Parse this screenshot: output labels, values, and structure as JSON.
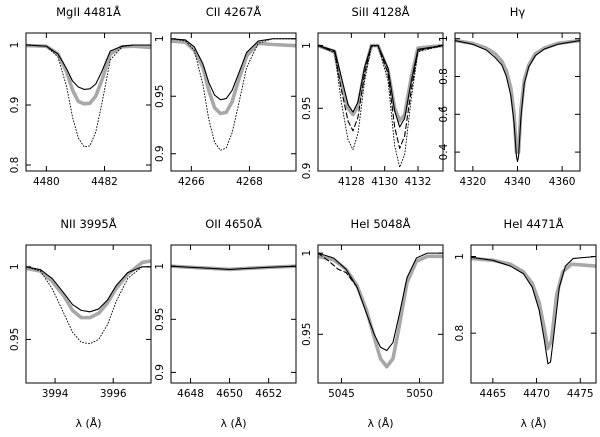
{
  "chart_data": [
    {
      "type": "line",
      "title": "MgII 4481Å",
      "xlabel": "",
      "xlim": [
        4479.3,
        4483.6
      ],
      "ylim": [
        0.79,
        1.02
      ],
      "xticks": [
        4480,
        4482
      ],
      "yticks": [
        0.8,
        0.9,
        1
      ],
      "series": [
        {
          "style": "observed",
          "x": [
            4479.3,
            4480.0,
            4480.4,
            4480.7,
            4480.9,
            4481.1,
            4481.3,
            4481.5,
            4481.7,
            4481.9,
            4482.2,
            4482.6,
            4483.0,
            4483.6
          ],
          "y": [
            0.999,
            0.998,
            0.985,
            0.955,
            0.925,
            0.906,
            0.902,
            0.903,
            0.915,
            0.94,
            0.985,
            0.997,
            0.998,
            0.996
          ]
        },
        {
          "style": "model-solid",
          "x": [
            4479.3,
            4480.0,
            4480.4,
            4480.7,
            4480.9,
            4481.1,
            4481.3,
            4481.5,
            4481.7,
            4481.9,
            4482.2,
            4482.6,
            4483.0,
            4483.6
          ],
          "y": [
            1.0,
            0.998,
            0.985,
            0.96,
            0.94,
            0.93,
            0.926,
            0.927,
            0.935,
            0.955,
            0.99,
            0.998,
            1.0,
            1.0
          ]
        },
        {
          "style": "model-dotted",
          "x": [
            4479.3,
            4480.0,
            4480.4,
            4480.7,
            4480.9,
            4481.1,
            4481.3,
            4481.5,
            4481.7,
            4481.9,
            4482.2,
            4482.6,
            4483.0,
            4483.6
          ],
          "y": [
            1.0,
            0.998,
            0.98,
            0.93,
            0.88,
            0.845,
            0.83,
            0.832,
            0.855,
            0.9,
            0.975,
            0.997,
            1.0,
            1.0
          ]
        }
      ]
    },
    {
      "type": "line",
      "title": "CII 4267Å",
      "xlabel": "",
      "xlim": [
        4265.3,
        4269.6
      ],
      "ylim": [
        0.885,
        1.005
      ],
      "xticks": [
        4266,
        4268
      ],
      "yticks": [
        0.9,
        0.95,
        1
      ],
      "series": [
        {
          "style": "observed",
          "x": [
            4265.3,
            4265.8,
            4266.1,
            4266.4,
            4266.6,
            4266.8,
            4267.0,
            4267.2,
            4267.4,
            4267.6,
            4267.9,
            4268.3,
            4268.8,
            4269.6
          ],
          "y": [
            0.998,
            0.997,
            0.99,
            0.975,
            0.955,
            0.94,
            0.935,
            0.936,
            0.945,
            0.962,
            0.985,
            0.996,
            0.995,
            0.994
          ]
        },
        {
          "style": "model-solid",
          "x": [
            4265.3,
            4265.8,
            4266.1,
            4266.4,
            4266.6,
            4266.8,
            4267.0,
            4267.2,
            4267.4,
            4267.6,
            4267.9,
            4268.3,
            4268.8,
            4269.6
          ],
          "y": [
            1.0,
            0.999,
            0.993,
            0.978,
            0.962,
            0.951,
            0.947,
            0.948,
            0.955,
            0.968,
            0.988,
            0.998,
            1.0,
            1.0
          ]
        },
        {
          "style": "model-dotted",
          "x": [
            4265.3,
            4265.8,
            4266.1,
            4266.4,
            4266.6,
            4266.8,
            4267.0,
            4267.2,
            4267.4,
            4267.6,
            4267.9,
            4268.3,
            4268.8,
            4269.6
          ],
          "y": [
            1.0,
            0.998,
            0.99,
            0.96,
            0.93,
            0.91,
            0.903,
            0.905,
            0.918,
            0.94,
            0.975,
            0.996,
            1.0,
            1.0
          ]
        }
      ]
    },
    {
      "type": "line",
      "title": "SiII 4128Å",
      "xlabel": "",
      "xlim": [
        4126.0,
        4133.5
      ],
      "ylim": [
        0.9,
        1.01
      ],
      "xticks": [
        4128,
        4130,
        4132
      ],
      "yticks": [
        0.9,
        0.95,
        1
      ],
      "series": [
        {
          "style": "observed",
          "x": [
            4126.0,
            4127.0,
            4127.4,
            4127.8,
            4128.1,
            4128.4,
            4128.8,
            4129.2,
            4129.6,
            4130.2,
            4130.6,
            4130.9,
            4131.2,
            4131.6,
            4132.0,
            4133.5
          ],
          "y": [
            1.0,
            0.995,
            0.97,
            0.95,
            0.945,
            0.952,
            0.98,
            1.0,
            1.0,
            0.98,
            0.95,
            0.94,
            0.945,
            0.975,
            0.998,
            1.0
          ]
        },
        {
          "style": "model-solid",
          "x": [
            4126.0,
            4127.0,
            4127.4,
            4127.8,
            4128.1,
            4128.4,
            4128.8,
            4129.2,
            4129.6,
            4130.2,
            4130.6,
            4130.9,
            4131.2,
            4131.6,
            4132.0,
            4133.5
          ],
          "y": [
            1.0,
            0.996,
            0.975,
            0.953,
            0.947,
            0.955,
            0.983,
            1.0,
            1.0,
            0.982,
            0.948,
            0.935,
            0.942,
            0.972,
            0.997,
            1.0
          ]
        },
        {
          "style": "model-dashed",
          "x": [
            4126.0,
            4127.0,
            4127.4,
            4127.8,
            4128.1,
            4128.4,
            4128.8,
            4129.2,
            4129.6,
            4130.2,
            4130.6,
            4130.9,
            4131.2,
            4131.6,
            4132.0,
            4133.5
          ],
          "y": [
            1.0,
            0.995,
            0.965,
            0.94,
            0.932,
            0.943,
            0.978,
            1.0,
            1.0,
            0.978,
            0.935,
            0.918,
            0.928,
            0.965,
            0.996,
            1.0
          ]
        },
        {
          "style": "model-dotted",
          "x": [
            4126.0,
            4127.0,
            4127.4,
            4127.8,
            4128.1,
            4128.4,
            4128.8,
            4129.2,
            4129.6,
            4130.2,
            4130.6,
            4130.9,
            4131.2,
            4131.6,
            4132.0,
            4133.5
          ],
          "y": [
            1.0,
            0.994,
            0.955,
            0.925,
            0.917,
            0.93,
            0.972,
            0.999,
            1.0,
            0.972,
            0.92,
            0.903,
            0.913,
            0.958,
            0.995,
            1.0
          ]
        }
      ]
    },
    {
      "type": "line",
      "title": "Hγ",
      "xlabel": "",
      "xlim": [
        4312,
        4368
      ],
      "ylim": [
        0.3,
        1.03
      ],
      "xticks": [
        4320,
        4340,
        4360
      ],
      "yticks": [
        0.4,
        0.6,
        0.8,
        1
      ],
      "series": [
        {
          "style": "observed",
          "x": [
            4312,
            4320,
            4326,
            4330,
            4333,
            4335,
            4337,
            4338.5,
            4339.5,
            4340.5,
            4341.5,
            4343,
            4345,
            4348,
            4352,
            4358,
            4368
          ],
          "y": [
            0.99,
            0.975,
            0.95,
            0.92,
            0.88,
            0.83,
            0.74,
            0.6,
            0.4,
            0.4,
            0.62,
            0.78,
            0.86,
            0.92,
            0.95,
            0.975,
            0.99
          ]
        },
        {
          "style": "model-solid",
          "x": [
            4312,
            4320,
            4326,
            4330,
            4333,
            4335,
            4337,
            4338.5,
            4339.5,
            4340,
            4340.5,
            4341.5,
            4343,
            4345,
            4348,
            4352,
            4358,
            4368
          ],
          "y": [
            0.99,
            0.97,
            0.94,
            0.9,
            0.86,
            0.8,
            0.7,
            0.55,
            0.38,
            0.35,
            0.38,
            0.58,
            0.76,
            0.85,
            0.91,
            0.945,
            0.97,
            0.99
          ]
        }
      ]
    },
    {
      "type": "line",
      "title": "NII 3995Å",
      "xlabel": "λ (Å)",
      "xlim": [
        3993.0,
        3997.3
      ],
      "ylim": [
        0.92,
        1.015
      ],
      "xticks": [
        3994,
        3996
      ],
      "yticks": [
        0.95,
        1
      ],
      "series": [
        {
          "style": "observed",
          "x": [
            3993.0,
            3993.5,
            3993.9,
            3994.3,
            3994.6,
            3994.9,
            3995.2,
            3995.5,
            3995.8,
            3996.1,
            3996.5,
            3997.0,
            3997.3
          ],
          "y": [
            0.999,
            0.997,
            0.99,
            0.98,
            0.97,
            0.965,
            0.965,
            0.968,
            0.975,
            0.985,
            0.995,
            1.003,
            1.004
          ]
        },
        {
          "style": "model-solid",
          "x": [
            3993.0,
            3993.5,
            3993.9,
            3994.3,
            3994.6,
            3994.9,
            3995.2,
            3995.5,
            3995.8,
            3996.1,
            3996.5,
            3997.0,
            3997.3
          ],
          "y": [
            1.0,
            0.998,
            0.992,
            0.982,
            0.974,
            0.97,
            0.969,
            0.971,
            0.977,
            0.987,
            0.996,
            1.0,
            1.0
          ]
        },
        {
          "style": "model-dotted",
          "x": [
            3993.0,
            3993.5,
            3993.9,
            3994.3,
            3994.6,
            3994.9,
            3995.2,
            3995.5,
            3995.8,
            3996.1,
            3996.5,
            3997.0,
            3997.3
          ],
          "y": [
            1.0,
            0.997,
            0.985,
            0.968,
            0.955,
            0.948,
            0.947,
            0.95,
            0.96,
            0.976,
            0.992,
            1.0,
            1.0
          ]
        }
      ]
    },
    {
      "type": "line",
      "title": "OII 4650Å",
      "xlabel": "λ (Å)",
      "xlim": [
        4647.0,
        4653.4
      ],
      "ylim": [
        0.89,
        1.02
      ],
      "xticks": [
        4648,
        4650,
        4652
      ],
      "yticks": [
        0.9,
        0.95,
        1
      ],
      "series": [
        {
          "style": "observed",
          "x": [
            4647.0,
            4648.0,
            4649.0,
            4650.0,
            4651.0,
            4652.0,
            4653.4
          ],
          "y": [
            1.0,
            0.999,
            0.998,
            0.997,
            0.998,
            0.999,
            1.0
          ]
        },
        {
          "style": "model-solid",
          "x": [
            4647.0,
            4648.0,
            4649.0,
            4650.0,
            4651.0,
            4652.0,
            4653.4
          ],
          "y": [
            1.0,
            0.999,
            0.998,
            0.997,
            0.998,
            0.999,
            1.0
          ]
        }
      ]
    },
    {
      "type": "line",
      "title": "HeI 5048Å",
      "xlabel": "λ (Å)",
      "xlim": [
        5043.5,
        5051.5
      ],
      "ylim": [
        0.92,
        1.005
      ],
      "xticks": [
        5045,
        5050
      ],
      "yticks": [
        0.95,
        1
      ],
      "series": [
        {
          "style": "observed",
          "x": [
            5043.5,
            5044.5,
            5045.3,
            5046.0,
            5046.6,
            5047.1,
            5047.5,
            5047.9,
            5048.3,
            5048.7,
            5049.2,
            5049.8,
            5050.5,
            5051.5
          ],
          "y": [
            0.998,
            0.996,
            0.99,
            0.98,
            0.965,
            0.948,
            0.935,
            0.93,
            0.935,
            0.955,
            0.982,
            0.995,
            0.998,
            0.998
          ]
        },
        {
          "style": "model-solid",
          "x": [
            5043.5,
            5044.5,
            5045.3,
            5046.0,
            5046.6,
            5047.1,
            5047.5,
            5047.9,
            5048.3,
            5048.7,
            5049.2,
            5049.8,
            5050.5,
            5051.5
          ],
          "y": [
            1.0,
            0.997,
            0.99,
            0.979,
            0.963,
            0.95,
            0.942,
            0.94,
            0.945,
            0.962,
            0.985,
            0.997,
            1.0,
            1.0
          ]
        },
        {
          "style": "model-dashed",
          "x": [
            5043.5,
            5044.2,
            5044.8,
            5045.3,
            5046.0
          ],
          "y": [
            1.0,
            0.995,
            0.99,
            0.988,
            0.979
          ]
        }
      ]
    },
    {
      "type": "line",
      "title": "HeI 4471Å",
      "xlabel": "λ (Å)",
      "xlim": [
        4462.5,
        4476.8
      ],
      "ylim": [
        0.67,
        1.03
      ],
      "xticks": [
        4465,
        4470,
        4475
      ],
      "yticks": [
        0.8,
        1
      ],
      "series": [
        {
          "style": "observed",
          "x": [
            4462.5,
            4465.0,
            4467.0,
            4468.5,
            4469.5,
            4470.3,
            4470.9,
            4471.3,
            4471.7,
            4472.3,
            4473.0,
            4474.0,
            4476.8
          ],
          "y": [
            0.995,
            0.99,
            0.98,
            0.96,
            0.93,
            0.88,
            0.81,
            0.76,
            0.78,
            0.9,
            0.96,
            0.98,
            0.975
          ]
        },
        {
          "style": "model-solid",
          "x": [
            4462.5,
            4465.0,
            4467.0,
            4468.5,
            4469.5,
            4470.3,
            4470.9,
            4471.3,
            4471.6,
            4472.0,
            4472.6,
            4473.3,
            4474.2,
            4476.8
          ],
          "y": [
            0.998,
            0.99,
            0.975,
            0.955,
            0.92,
            0.86,
            0.78,
            0.72,
            0.725,
            0.8,
            0.92,
            0.975,
            0.995,
            1.0
          ]
        }
      ]
    }
  ]
}
